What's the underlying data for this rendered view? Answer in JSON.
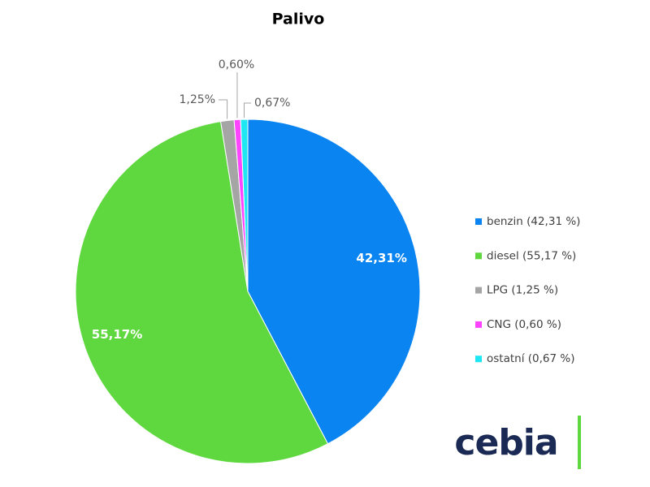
{
  "chart_data": {
    "type": "pie",
    "title": "Palivo",
    "categories": [
      "benzin (42,31 %)",
      "diesel (55,17 %)",
      "LPG (1,25 %)",
      "CNG (0,60 %)",
      "ostatní (0,67 %)"
    ],
    "values": [
      42.31,
      55.17,
      1.25,
      0.6,
      0.67
    ],
    "value_labels": [
      "42,31%",
      "55,17%",
      "1,25%",
      "0,60%",
      "0,67%"
    ],
    "colors": [
      "#0a84f0",
      "#5fd83f",
      "#a5a5a5",
      "#ff44ff",
      "#1ee6f2"
    ],
    "legend": "right"
  },
  "logo": "cebia"
}
